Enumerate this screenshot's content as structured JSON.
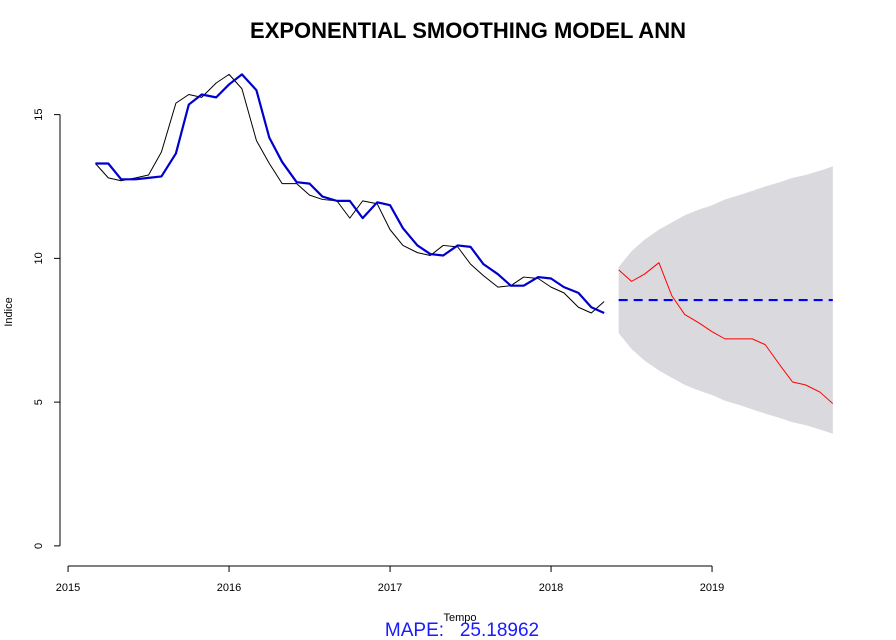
{
  "chart_data": {
    "type": "line",
    "title": "EXPONENTIAL SMOOTHING MODEL ANN",
    "xlabel": "Tempo",
    "ylabel": "Indice",
    "xlim": [
      2014.95,
      2019.95
    ],
    "ylim": [
      -0.7,
      16.9
    ],
    "x_ticks": [
      2015,
      2016,
      2017,
      2018,
      2019
    ],
    "y_ticks": [
      0,
      5,
      10,
      15
    ],
    "grid": false,
    "legend": "none",
    "colors": {
      "actual": "#000000",
      "fitted": "#0000cc",
      "holdout": "#ff0000",
      "forecast": "#0000ff",
      "interval": "#d9d9de"
    },
    "series": [
      {
        "role": "actual",
        "x": [
          2015.17,
          2015.25,
          2015.33,
          2015.42,
          2015.5,
          2015.58,
          2015.67,
          2015.75,
          2015.83,
          2015.92,
          2016.0,
          2016.08,
          2016.17,
          2016.25,
          2016.33,
          2016.42,
          2016.5,
          2016.58,
          2016.67,
          2016.75,
          2016.83,
          2016.92,
          2017.0,
          2017.08,
          2017.17,
          2017.25,
          2017.33,
          2017.42,
          2017.5,
          2017.58,
          2017.67,
          2017.75,
          2017.83,
          2017.92,
          2018.0,
          2018.08,
          2018.17,
          2018.25,
          2018.33
        ],
        "values": [
          13.3,
          12.8,
          12.7,
          12.8,
          12.9,
          13.7,
          15.4,
          15.7,
          15.6,
          16.1,
          16.4,
          15.9,
          14.1,
          13.3,
          12.6,
          12.6,
          12.2,
          12.05,
          12.0,
          11.4,
          12.0,
          11.9,
          11.0,
          10.45,
          10.2,
          10.1,
          10.45,
          10.4,
          9.8,
          9.4,
          9.0,
          9.05,
          9.35,
          9.3,
          9.0,
          8.8,
          8.3,
          8.1,
          8.5
        ]
      },
      {
        "role": "fitted",
        "x": [
          2015.17,
          2015.25,
          2015.33,
          2015.42,
          2015.5,
          2015.58,
          2015.67,
          2015.75,
          2015.83,
          2015.92,
          2016.0,
          2016.08,
          2016.17,
          2016.25,
          2016.33,
          2016.42,
          2016.5,
          2016.58,
          2016.67,
          2016.75,
          2016.83,
          2016.92,
          2017.0,
          2017.08,
          2017.17,
          2017.25,
          2017.33,
          2017.42,
          2017.5,
          2017.58,
          2017.67,
          2017.75,
          2017.83,
          2017.92,
          2018.0,
          2018.08,
          2018.17,
          2018.25,
          2018.33
        ],
        "values": [
          13.3,
          13.3,
          12.75,
          12.75,
          12.8,
          12.85,
          13.65,
          15.35,
          15.7,
          15.6,
          16.05,
          16.4,
          15.85,
          14.2,
          13.35,
          12.65,
          12.6,
          12.15,
          12.0,
          12.0,
          11.4,
          11.95,
          11.85,
          11.05,
          10.45,
          10.15,
          10.1,
          10.45,
          10.4,
          9.8,
          9.45,
          9.05,
          9.05,
          9.35,
          9.3,
          9.0,
          8.8,
          8.3,
          8.1
        ]
      },
      {
        "role": "holdout",
        "x": [
          2018.42,
          2018.5,
          2018.58,
          2018.67,
          2018.75,
          2018.83,
          2018.92,
          2019.0,
          2019.08,
          2019.17,
          2019.25,
          2019.33,
          2019.42,
          2019.5,
          2019.58,
          2019.67,
          2019.75
        ],
        "values": [
          9.6,
          9.2,
          9.45,
          9.85,
          8.7,
          8.05,
          7.75,
          7.45,
          7.2,
          7.2,
          7.2,
          7.0,
          6.3,
          5.7,
          5.6,
          5.35,
          4.95
        ]
      },
      {
        "role": "forecast",
        "x": [
          2018.42,
          2019.75
        ],
        "values": [
          8.55,
          8.55
        ]
      }
    ],
    "interval": {
      "x": [
        2018.42,
        2018.5,
        2018.58,
        2018.67,
        2018.75,
        2018.83,
        2018.92,
        2019.0,
        2019.08,
        2019.17,
        2019.25,
        2019.33,
        2019.42,
        2019.5,
        2019.58,
        2019.67,
        2019.75
      ],
      "upper": [
        9.7,
        10.25,
        10.65,
        11.0,
        11.25,
        11.5,
        11.7,
        11.85,
        12.05,
        12.2,
        12.35,
        12.5,
        12.65,
        12.8,
        12.9,
        13.05,
        13.2
      ],
      "lower": [
        7.4,
        6.85,
        6.45,
        6.1,
        5.85,
        5.6,
        5.4,
        5.25,
        5.05,
        4.9,
        4.75,
        4.6,
        4.45,
        4.3,
        4.2,
        4.05,
        3.9
      ]
    },
    "annotation": "MAPE:   25.18962"
  }
}
